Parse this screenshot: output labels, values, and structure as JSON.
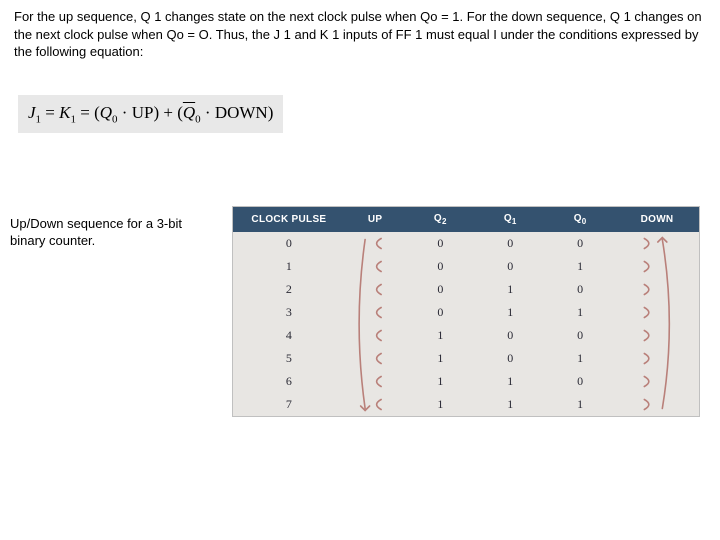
{
  "intro": {
    "text": "For the up sequence, Q 1 changes state on the next clock pulse when Qo = 1. For the down sequence, Q 1 changes on the next clock pulse when Qo = O. Thus, the J 1 and K 1 inputs of FF 1 must equal I under the conditions expressed by the following equation:"
  },
  "equation": {
    "lhs_j": "J",
    "lhs_j_sub": "1",
    "lhs_k": "K",
    "lhs_k_sub": "1",
    "term1_q": "Q",
    "term1_q_sub": "0",
    "term1_label": "UP",
    "term2_q": "Q",
    "term2_q_sub": "0",
    "term2_label": "DOWN",
    "eq": " = ",
    "dot": " · ",
    "plus": " + ",
    "lp": "(",
    "rp": ")"
  },
  "caption": {
    "text": "Up/Down sequence for a 3-bit binary counter."
  },
  "table": {
    "header_bg": "#34526f",
    "header_fg": "#ffffff",
    "body_bg": "#e8e6e3",
    "arrow_color": "#b9807a",
    "columns": [
      {
        "label": "CLOCK PULSE",
        "sub": ""
      },
      {
        "label": "UP",
        "sub": ""
      },
      {
        "label": "Q",
        "sub": "2"
      },
      {
        "label": "Q",
        "sub": "1"
      },
      {
        "label": "Q",
        "sub": "0"
      },
      {
        "label": "DOWN",
        "sub": ""
      }
    ],
    "rows": [
      [
        "0",
        "",
        "0",
        "0",
        "0",
        ""
      ],
      [
        "1",
        "",
        "0",
        "0",
        "1",
        ""
      ],
      [
        "2",
        "",
        "0",
        "1",
        "0",
        ""
      ],
      [
        "3",
        "",
        "0",
        "1",
        "1",
        ""
      ],
      [
        "4",
        "",
        "1",
        "0",
        "0",
        ""
      ],
      [
        "5",
        "",
        "1",
        "0",
        "1",
        ""
      ],
      [
        "6",
        "",
        "1",
        "1",
        "0",
        ""
      ],
      [
        "7",
        "",
        "1",
        "1",
        "1",
        ""
      ]
    ]
  }
}
